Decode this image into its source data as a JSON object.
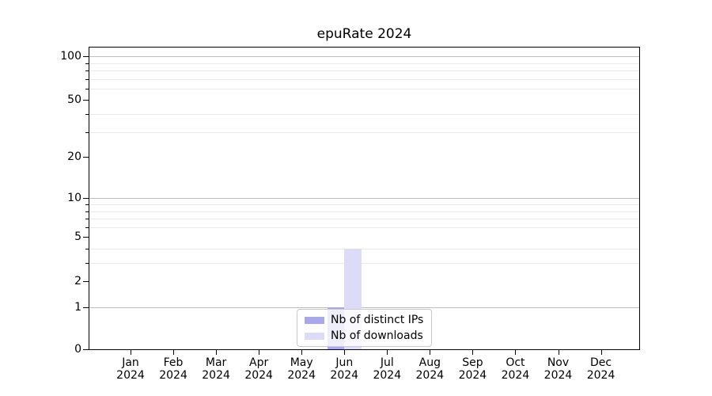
{
  "chart_data": {
    "type": "bar",
    "title": "epuRate 2024",
    "categories": [
      "Jan 2024",
      "Feb 2024",
      "Mar 2024",
      "Apr 2024",
      "May 2024",
      "Jun 2024",
      "Jul 2024",
      "Aug 2024",
      "Sep 2024",
      "Oct 2024",
      "Nov 2024",
      "Dec 2024"
    ],
    "series": [
      {
        "name": "Nb of distinct IPs",
        "color": "#a8a8ea",
        "values": [
          0,
          0,
          0,
          0,
          0,
          1,
          0,
          0,
          0,
          0,
          0,
          0
        ]
      },
      {
        "name": "Nb of downloads",
        "color": "#dcdcf8",
        "values": [
          0,
          0,
          0,
          0,
          0,
          4,
          0,
          0,
          0,
          0,
          0,
          0
        ]
      }
    ],
    "yaxis": {
      "scale": "log1p",
      "ticks": [
        0,
        1,
        2,
        5,
        10,
        20,
        50,
        100
      ],
      "tick_labels": [
        "0",
        "1",
        "2",
        "5",
        "10",
        "20",
        "50",
        "100"
      ],
      "minor_ticks": [
        3,
        4,
        6,
        7,
        8,
        9,
        30,
        40,
        60,
        70,
        80,
        90
      ],
      "grid_major": [
        1,
        10,
        100
      ],
      "ylim": [
        0,
        113
      ]
    },
    "xlabel": "",
    "ylabel": "",
    "grid": true,
    "legend_position": "lower center"
  }
}
